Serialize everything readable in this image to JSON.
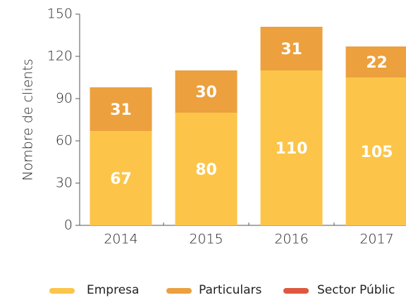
{
  "chart_data": {
    "type": "stacked_bar",
    "y_label": "Nombre de clients",
    "categories": [
      "2014",
      "2015",
      "2016",
      "2017"
    ],
    "series": [
      {
        "name": "Empresa",
        "color": "#fcc54a",
        "values": [
          67,
          80,
          110,
          105
        ]
      },
      {
        "name": "Particulars",
        "color": "#eca03e",
        "values": [
          31,
          30,
          31,
          22
        ]
      },
      {
        "name": "Sector Públic",
        "color": "#e0573f",
        "values": [
          null,
          null,
          null,
          null
        ]
      }
    ],
    "ylim": [
      0,
      150
    ],
    "yticks": [
      0,
      30,
      60,
      90,
      120,
      150
    ]
  }
}
